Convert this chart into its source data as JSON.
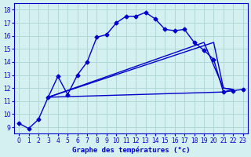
{
  "xlabel": "Graphe des températures (°c)",
  "background_color": "#d4f0f0",
  "grid_color": "#b0d8d8",
  "line_color": "#0000cc",
  "xlim": [
    -0.5,
    23.5
  ],
  "ylim": [
    8.5,
    18.5
  ],
  "xticks": [
    0,
    1,
    2,
    3,
    4,
    5,
    6,
    7,
    8,
    9,
    10,
    11,
    12,
    13,
    14,
    15,
    16,
    17,
    18,
    19,
    20,
    21,
    22,
    23
  ],
  "yticks": [
    9,
    10,
    11,
    12,
    13,
    14,
    15,
    16,
    17,
    18
  ],
  "series1_x": [
    0,
    1,
    2,
    3,
    4,
    5,
    6,
    7,
    8,
    9,
    10,
    11,
    12,
    13,
    14,
    15,
    16,
    17,
    18,
    19,
    20,
    21,
    22,
    23
  ],
  "series1_y": [
    9.3,
    8.9,
    9.6,
    11.3,
    12.9,
    11.5,
    13.0,
    14.0,
    15.9,
    16.1,
    17.0,
    17.5,
    17.5,
    17.8,
    17.3,
    16.5,
    16.4,
    16.5,
    15.5,
    14.9,
    14.2,
    11.7,
    11.8,
    11.9
  ],
  "series2_x": [
    3,
    21,
    22
  ],
  "series2_y": [
    11.3,
    11.7,
    11.9
  ],
  "series3_x": [
    3,
    20,
    21,
    22
  ],
  "series3_y": [
    11.3,
    15.5,
    12.0,
    11.9
  ],
  "series4_x": [
    3,
    19,
    21,
    22
  ],
  "series4_y": [
    11.3,
    15.5,
    12.0,
    11.9
  ]
}
